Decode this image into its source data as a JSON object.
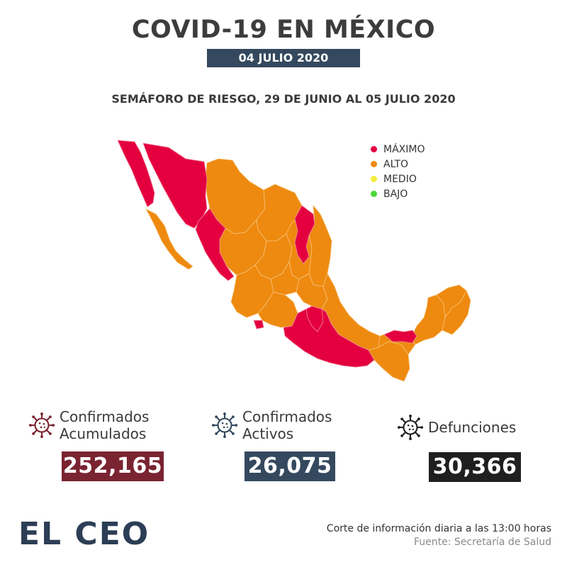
{
  "header": {
    "title": "COVID-19 EN MÉXICO",
    "date": "04 JULIO 2020",
    "subtitle": "SEMÁFORO DE RIESGO, 29 DE JUNIO AL 05 JULIO 2020"
  },
  "legend": {
    "items": [
      {
        "label": "MÁXIMO",
        "color": "#e4003f"
      },
      {
        "label": "ALTO",
        "color": "#ee8a0f"
      },
      {
        "label": "MEDIO",
        "color": "#f2ee3a"
      },
      {
        "label": "BAJO",
        "color": "#4bd93a"
      }
    ]
  },
  "colors": {
    "maximo": "#e4003f",
    "alto": "#ee8a0f",
    "confirmados_acumulados": "#7a2331",
    "confirmados_activos": "#34495e",
    "defunciones": "#1f1f1f",
    "brand": "#2c3e55"
  },
  "stats": {
    "acumulados": {
      "label_line1": "Confirmados",
      "label_line2": "Acumulados",
      "value": "252,165",
      "icon": "virus-icon"
    },
    "activos": {
      "label_line1": "Confirmados",
      "label_line2": "Activos",
      "value": "26,075",
      "icon": "virus-icon"
    },
    "defunciones": {
      "label_line1": "Defunciones",
      "value": "30,366",
      "icon": "virus-icon"
    }
  },
  "footer": {
    "logo": "EL CEO",
    "note": "Corte de información diaria a las 13:00 horas",
    "source": "Fuente: Secretaría de Salud"
  }
}
